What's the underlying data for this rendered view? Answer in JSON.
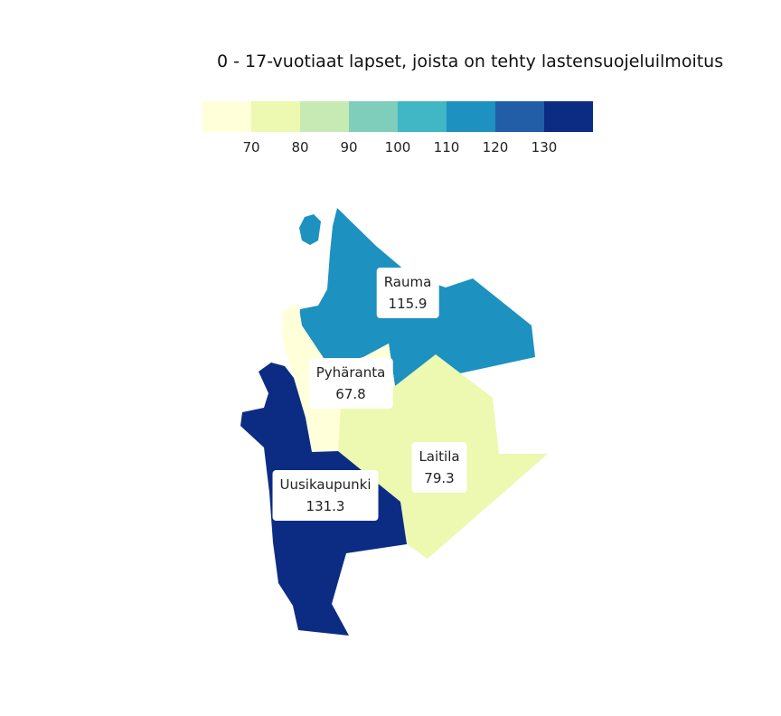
{
  "title": "0 - 17-vuotiaat lapset, joista on tehty lastensuojeluilmoitus",
  "legend": {
    "colors": [
      "#ffffd9",
      "#edf8b1",
      "#c7e9b4",
      "#7fcdbb",
      "#41b6c4",
      "#1d91c0",
      "#225ea8",
      "#0c2c84"
    ],
    "ticks": [
      "70",
      "80",
      "90",
      "100",
      "110",
      "120",
      "130"
    ]
  },
  "regions": [
    {
      "name": "Rauma",
      "value": "115.9",
      "color": "#1d91c0"
    },
    {
      "name": "Pyhäranta",
      "value": "67.8",
      "color": "#ffffd9"
    },
    {
      "name": "Laitila",
      "value": "79.3",
      "color": "#edf8b1"
    },
    {
      "name": "Uusikaupunki",
      "value": "131.3",
      "color": "#0c2c84"
    }
  ]
}
